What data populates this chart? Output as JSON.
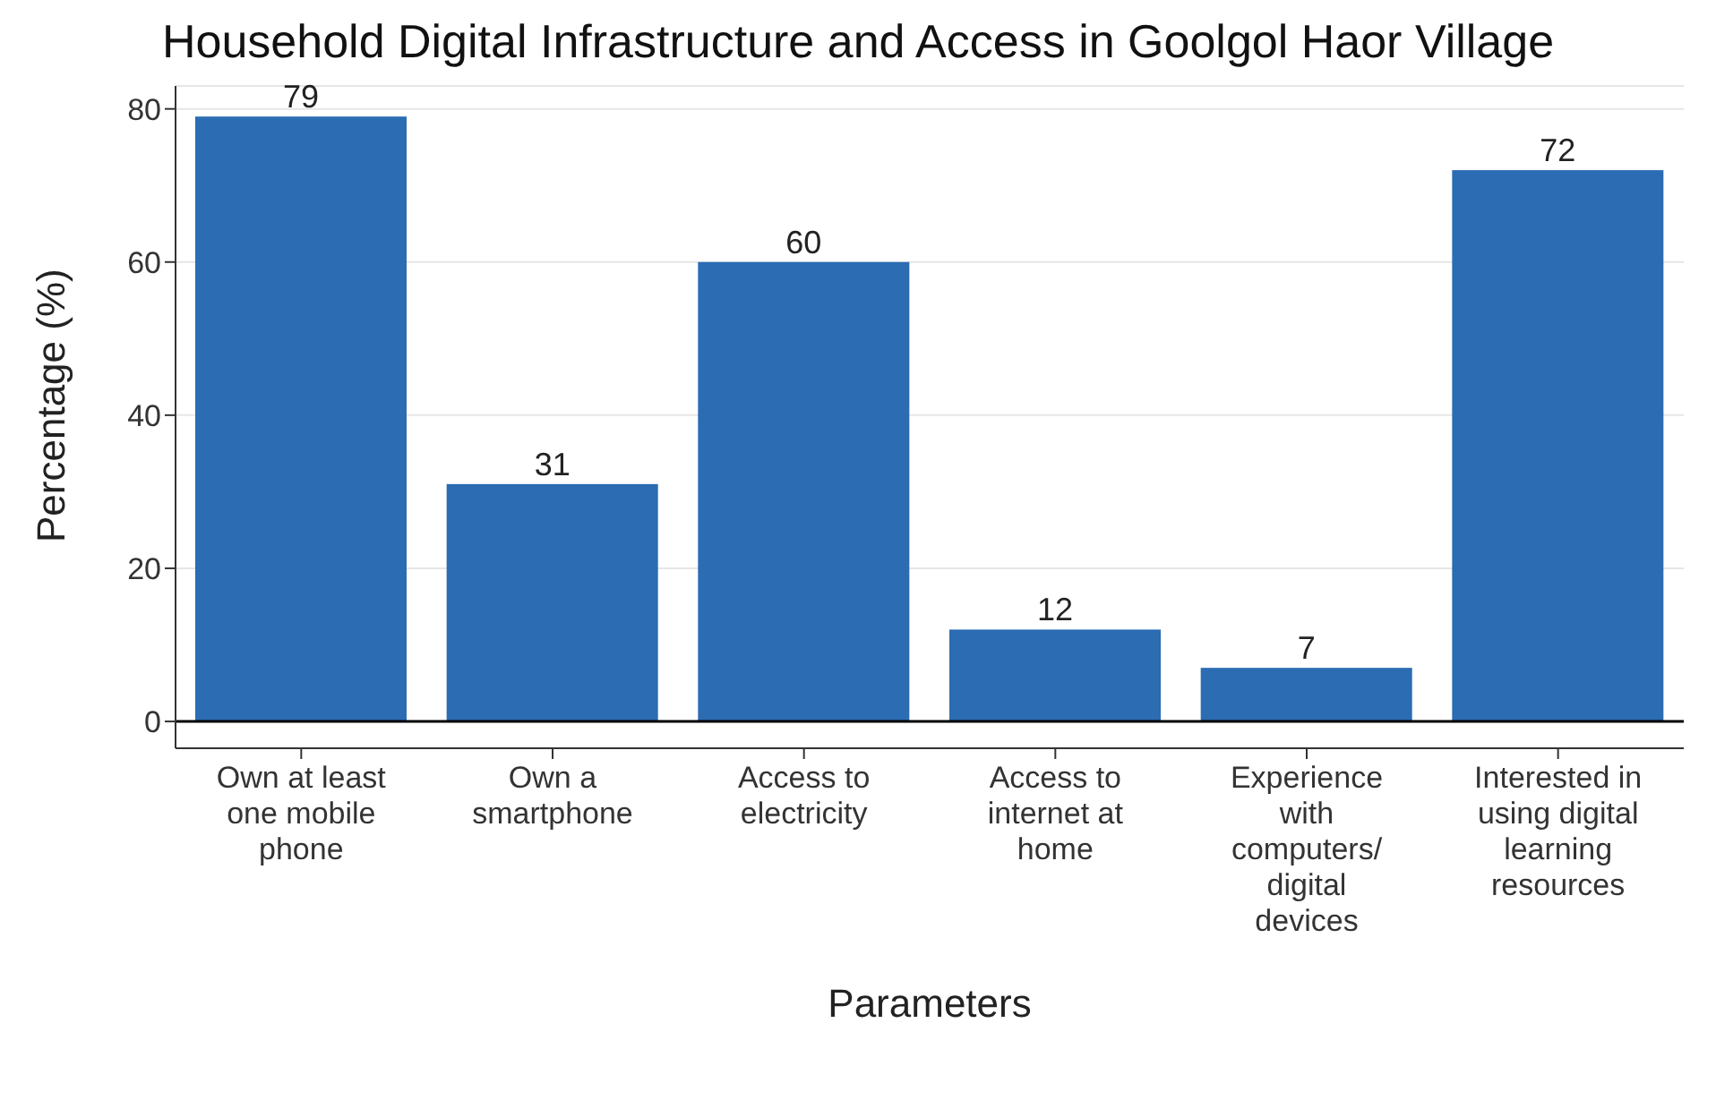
{
  "chart_data": {
    "type": "bar",
    "title": "Household Digital Infrastructure and Access in Goolgol Haor Village",
    "xlabel": "Parameters",
    "ylabel": "Percentage (%)",
    "categories": [
      "Own at least one mobile phone",
      "Own a smartphone",
      "Access to electricity",
      "Access to internet at home",
      "Experience with computers/ digital devices",
      "Interested in using digital learning resources"
    ],
    "values": [
      79,
      31,
      60,
      12,
      7,
      72
    ],
    "color": "#2b6cb3",
    "data_labels": true,
    "ylim": [
      -3.5,
      83
    ],
    "yticks": [
      0,
      20,
      40,
      60,
      80
    ],
    "grid": "y",
    "ref_lines": [
      {
        "axis": "y",
        "value": 0,
        "color": "#000000"
      }
    ]
  }
}
